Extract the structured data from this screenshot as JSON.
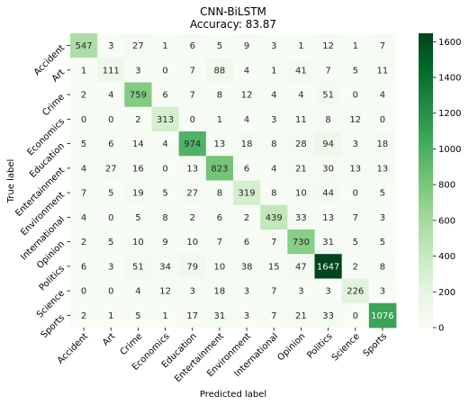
{
  "chart_data": {
    "type": "heatmap",
    "title": "CNN-BiLSTM",
    "subtitle": "Accuracy: 83.87",
    "xlabel": "Predicted label",
    "ylabel": "True label",
    "labels": [
      "Accident",
      "Art",
      "Crime",
      "Economics",
      "Education",
      "Entertainment",
      "Environment",
      "International",
      "Opinion",
      "Politics",
      "Science",
      "Sports"
    ],
    "matrix": [
      [
        547,
        3,
        27,
        1,
        6,
        5,
        9,
        3,
        1,
        12,
        1,
        7
      ],
      [
        1,
        111,
        3,
        0,
        7,
        88,
        4,
        1,
        41,
        7,
        5,
        11
      ],
      [
        2,
        4,
        759,
        6,
        7,
        8,
        12,
        4,
        4,
        51,
        0,
        4
      ],
      [
        0,
        0,
        2,
        313,
        0,
        1,
        4,
        3,
        11,
        8,
        12,
        0
      ],
      [
        5,
        6,
        14,
        4,
        974,
        13,
        18,
        8,
        28,
        94,
        3,
        18
      ],
      [
        4,
        27,
        16,
        0,
        13,
        823,
        6,
        4,
        21,
        30,
        13,
        13
      ],
      [
        7,
        5,
        19,
        5,
        27,
        8,
        319,
        8,
        10,
        44,
        0,
        5
      ],
      [
        4,
        0,
        5,
        8,
        2,
        6,
        2,
        439,
        33,
        13,
        7,
        3
      ],
      [
        2,
        5,
        10,
        9,
        10,
        7,
        6,
        7,
        730,
        31,
        5,
        5
      ],
      [
        6,
        3,
        51,
        34,
        79,
        10,
        38,
        15,
        47,
        1647,
        2,
        8
      ],
      [
        0,
        0,
        4,
        12,
        3,
        18,
        3,
        7,
        3,
        3,
        226,
        3
      ],
      [
        2,
        1,
        5,
        1,
        17,
        31,
        3,
        7,
        21,
        33,
        0,
        1076
      ]
    ],
    "colorbar": {
      "ticks": [
        0,
        200,
        400,
        600,
        800,
        1000,
        1200,
        1400,
        1600
      ],
      "range": [
        0,
        1647
      ],
      "colormap": "Greens"
    },
    "colors": {
      "low": "#f7fcf5",
      "high": "#00441b"
    }
  }
}
